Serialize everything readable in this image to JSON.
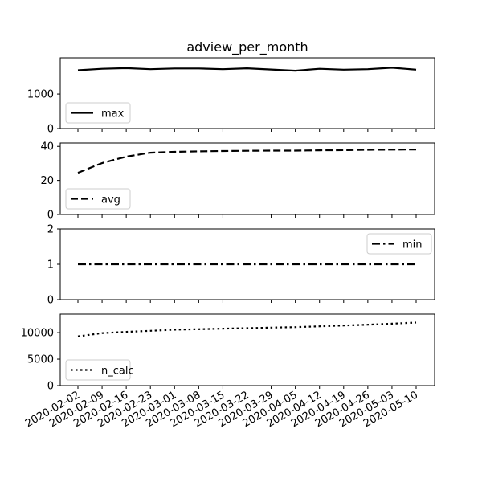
{
  "chart_data": {
    "type": "line",
    "title": "adview_per_month",
    "shared_x": true,
    "x": [
      "2020-02-02",
      "2020-02-09",
      "2020-02-16",
      "2020-02-23",
      "2020-03-01",
      "2020-03-08",
      "2020-03-15",
      "2020-03-22",
      "2020-03-29",
      "2020-04-05",
      "2020-04-12",
      "2020-04-19",
      "2020-04-26",
      "2020-05-03",
      "2020-05-10"
    ],
    "panels": [
      {
        "series": [
          {
            "name": "max",
            "style": "solid",
            "values": [
              1690,
              1730,
              1750,
              1720,
              1740,
              1740,
              1720,
              1745,
              1710,
              1675,
              1730,
              1705,
              1720,
              1760,
              1705
            ]
          }
        ],
        "ylim": [
          0,
          2050
        ],
        "yticks": [
          0,
          1000
        ],
        "legend": "lower-left"
      },
      {
        "series": [
          {
            "name": "avg",
            "style": "dashed",
            "values": [
              24.5,
              30.2,
              34.0,
              36.3,
              36.8,
              37.1,
              37.3,
              37.4,
              37.5,
              37.5,
              37.7,
              37.8,
              38.0,
              38.1,
              38.2
            ]
          }
        ],
        "ylim": [
          0,
          42
        ],
        "yticks": [
          0,
          20,
          40
        ],
        "legend": "lower-left"
      },
      {
        "series": [
          {
            "name": "min",
            "style": "dashdot",
            "values": [
              1,
              1,
              1,
              1,
              1,
              1,
              1,
              1,
              1,
              1,
              1,
              1,
              1,
              1,
              1
            ]
          }
        ],
        "ylim": [
          0,
          2
        ],
        "yticks": [
          0,
          1,
          2
        ],
        "legend": "upper-right"
      },
      {
        "series": [
          {
            "name": "n_calc",
            "style": "dotted",
            "values": [
              9300,
              9900,
              10150,
              10350,
              10550,
              10650,
              10750,
              10850,
              10950,
              11050,
              11200,
              11350,
              11500,
              11700,
              11900
            ]
          }
        ],
        "ylim": [
          0,
          13500
        ],
        "yticks": [
          0,
          5000,
          10000
        ],
        "legend": "lower-left"
      }
    ],
    "colors": {
      "line": "#000000",
      "axes": "#000000",
      "background": "#ffffff"
    }
  }
}
